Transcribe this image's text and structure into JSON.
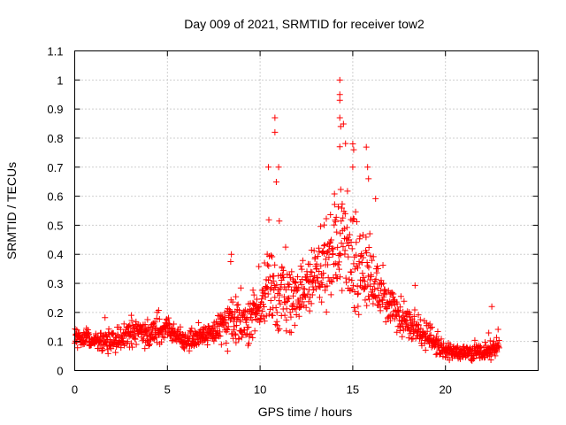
{
  "chart_data": {
    "type": "scatter",
    "title": "Day 009 of 2021, SRMTID for receiver tow2",
    "xlabel": "GPS time / hours",
    "ylabel": "SRMTID / TECUs",
    "xlim": [
      0,
      25
    ],
    "ylim": [
      0,
      1.1
    ],
    "xticks": [
      0,
      5,
      10,
      15,
      20
    ],
    "xtick_labels": [
      "0",
      "5",
      "10",
      "15",
      "20"
    ],
    "yticks": [
      0,
      0.1,
      0.2,
      0.3,
      0.4,
      0.5,
      0.6,
      0.7,
      0.8,
      0.9,
      1,
      1.1
    ],
    "ytick_labels": [
      "0",
      "0.1",
      "0.2",
      "0.3",
      "0.4",
      "0.5",
      "0.6",
      "0.7",
      "0.8",
      "0.9",
      "1",
      "1.1"
    ],
    "grid": true,
    "marker": "+",
    "series": [
      {
        "name": "tow2",
        "color": "#ff0000",
        "x_range": [
          0,
          22.9
        ],
        "envelope": [
          {
            "x": 0,
            "median": 0.11,
            "spread": 0.03
          },
          {
            "x": 1,
            "median": 0.1,
            "spread": 0.03
          },
          {
            "x": 2,
            "median": 0.1,
            "spread": 0.03
          },
          {
            "x": 3,
            "median": 0.13,
            "spread": 0.04
          },
          {
            "x": 4,
            "median": 0.13,
            "spread": 0.04
          },
          {
            "x": 5,
            "median": 0.14,
            "spread": 0.04
          },
          {
            "x": 6,
            "median": 0.11,
            "spread": 0.03
          },
          {
            "x": 7,
            "median": 0.12,
            "spread": 0.03
          },
          {
            "x": 8,
            "median": 0.15,
            "spread": 0.05
          },
          {
            "x": 8.5,
            "median": 0.2,
            "spread": 0.08
          },
          {
            "x": 9,
            "median": 0.15,
            "spread": 0.05
          },
          {
            "x": 10,
            "median": 0.22,
            "spread": 0.08
          },
          {
            "x": 10.5,
            "median": 0.3,
            "spread": 0.15
          },
          {
            "x": 11,
            "median": 0.25,
            "spread": 0.12
          },
          {
            "x": 12,
            "median": 0.25,
            "spread": 0.08
          },
          {
            "x": 13,
            "median": 0.33,
            "spread": 0.1
          },
          {
            "x": 14,
            "median": 0.42,
            "spread": 0.14
          },
          {
            "x": 14.5,
            "median": 0.45,
            "spread": 0.2
          },
          {
            "x": 15,
            "median": 0.4,
            "spread": 0.18
          },
          {
            "x": 16,
            "median": 0.3,
            "spread": 0.1
          },
          {
            "x": 17,
            "median": 0.22,
            "spread": 0.07
          },
          {
            "x": 18,
            "median": 0.16,
            "spread": 0.05
          },
          {
            "x": 19,
            "median": 0.12,
            "spread": 0.04
          },
          {
            "x": 20,
            "median": 0.07,
            "spread": 0.03
          },
          {
            "x": 21,
            "median": 0.06,
            "spread": 0.02
          },
          {
            "x": 22,
            "median": 0.06,
            "spread": 0.03
          },
          {
            "x": 22.9,
            "median": 0.08,
            "spread": 0.03
          }
        ],
        "peaks": [
          {
            "x": 8.45,
            "y": 0.4
          },
          {
            "x": 10.45,
            "y": 0.7
          },
          {
            "x": 10.8,
            "y": 0.87
          },
          {
            "x": 10.8,
            "y": 0.82
          },
          {
            "x": 11.0,
            "y": 0.7
          },
          {
            "x": 14.3,
            "y": 1.0
          },
          {
            "x": 14.3,
            "y": 0.95
          },
          {
            "x": 14.3,
            "y": 0.93
          },
          {
            "x": 14.3,
            "y": 0.87
          },
          {
            "x": 14.35,
            "y": 0.84
          },
          {
            "x": 14.3,
            "y": 0.77
          },
          {
            "x": 15.0,
            "y": 0.78
          },
          {
            "x": 15.05,
            "y": 0.76
          },
          {
            "x": 15.0,
            "y": 0.7
          },
          {
            "x": 15.8,
            "y": 0.7
          },
          {
            "x": 15.85,
            "y": 0.66
          },
          {
            "x": 22.5,
            "y": 0.22
          }
        ]
      }
    ]
  }
}
